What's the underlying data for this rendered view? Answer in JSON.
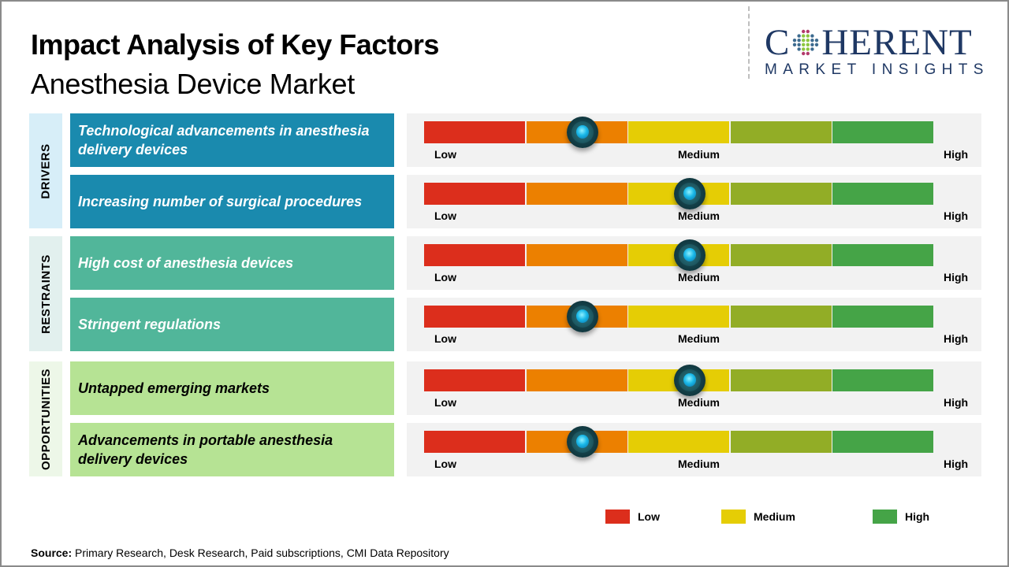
{
  "header": {
    "title": "Impact Analysis of Key Factors",
    "subtitle": "Anesthesia Device Market"
  },
  "logo": {
    "main_left": "C",
    "main_right": "HERENT",
    "sub": "MARKET INSIGHTS",
    "icon": "globe-dots-icon"
  },
  "scale": {
    "segments": [
      {
        "color": "#dc2e1c"
      },
      {
        "color": "#ec8000"
      },
      {
        "color": "#e5cd05"
      },
      {
        "color": "#92ad26"
      },
      {
        "color": "#45a447"
      }
    ],
    "labels": {
      "low": "Low",
      "medium": "Medium",
      "high": "High"
    }
  },
  "chart_data": {
    "type": "table",
    "title": "Impact Analysis of Key Factors - Anesthesia Device Market",
    "scale": [
      "Low",
      "Medium",
      "High"
    ],
    "value_range": [
      0,
      1
    ],
    "categories": [
      {
        "name": "DRIVERS",
        "label_bg": "#d7eef8",
        "factor_bg": "#1a8aae",
        "text_color": "#ffffff",
        "factors": [
          {
            "text": "Technological advancements in anesthesia delivery devices",
            "impact": 0.31
          },
          {
            "text": "Increasing number of surgical procedures",
            "impact": 0.52
          }
        ]
      },
      {
        "name": "RESTRAINTS",
        "label_bg": "#e2f0ee",
        "factor_bg": "#51b69a",
        "text_color": "#ffffff",
        "factors": [
          {
            "text": "High cost of anesthesia devices",
            "impact": 0.52
          },
          {
            "text": "Stringent regulations",
            "impact": 0.31
          }
        ]
      },
      {
        "name": "OPPORTUNITIES",
        "label_bg": "#edf7e8",
        "factor_bg": "#b6e394",
        "text_color": "#000000",
        "factors": [
          {
            "text": "Untapped emerging markets",
            "impact": 0.52
          },
          {
            "text": "Advancements in portable anesthesia delivery devices",
            "impact": 0.31
          }
        ]
      }
    ]
  },
  "legend": [
    {
      "label": "Low",
      "color": "#dc2e1c"
    },
    {
      "label": "Medium",
      "color": "#e5cd05"
    },
    {
      "label": "High",
      "color": "#45a447"
    }
  ],
  "source": {
    "prefix": "Source:",
    "text": " Primary Research, Desk Research, Paid subscriptions, CMI Data Repository"
  }
}
